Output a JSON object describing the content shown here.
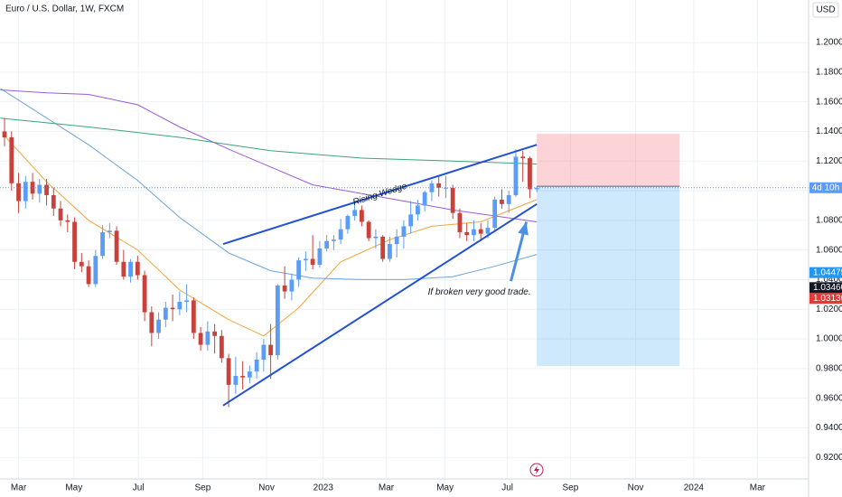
{
  "chart_data": {
    "type": "candlestick",
    "title": "Euro / U.S. Dollar, 1W, FXCM",
    "currency": "USD",
    "x": [
      -2,
      -1,
      0,
      1,
      2,
      3,
      4,
      5,
      6,
      7,
      8,
      9,
      10,
      11,
      12,
      13,
      14,
      15,
      16,
      17,
      18,
      19,
      20,
      21,
      22,
      23,
      24,
      25,
      26,
      27,
      28,
      29,
      30,
      31,
      32,
      33,
      34,
      35,
      36,
      37,
      38,
      39,
      40,
      41,
      42,
      43,
      44,
      45,
      46,
      47,
      48,
      49,
      50,
      51,
      52,
      53,
      54,
      55,
      56,
      57,
      58,
      59,
      60,
      61,
      62,
      63,
      64,
      65,
      66,
      67,
      68,
      69,
      70,
      71,
      72,
      73,
      74
    ],
    "ohlc": [
      [
        1.14,
        1.149,
        1.13,
        1.136
      ],
      [
        1.136,
        1.14,
        1.1,
        1.105
      ],
      [
        1.105,
        1.112,
        1.085,
        1.093
      ],
      [
        1.093,
        1.11,
        1.088,
        1.106
      ],
      [
        1.106,
        1.112,
        1.094,
        1.098
      ],
      [
        1.098,
        1.108,
        1.092,
        1.104
      ],
      [
        1.104,
        1.108,
        1.09,
        1.097
      ],
      [
        1.097,
        1.102,
        1.083,
        1.088
      ],
      [
        1.088,
        1.093,
        1.076,
        1.08
      ],
      [
        1.08,
        1.084,
        1.072,
        1.079
      ],
      [
        1.079,
        1.082,
        1.047,
        1.052
      ],
      [
        1.052,
        1.058,
        1.045,
        1.049
      ],
      [
        1.049,
        1.053,
        1.035,
        1.037
      ],
      [
        1.037,
        1.06,
        1.035,
        1.056
      ],
      [
        1.056,
        1.077,
        1.054,
        1.072
      ],
      [
        1.072,
        1.078,
        1.068,
        1.073
      ],
      [
        1.073,
        1.076,
        1.05,
        1.052
      ],
      [
        1.052,
        1.06,
        1.04,
        1.042
      ],
      [
        1.042,
        1.054,
        1.038,
        1.052
      ],
      [
        1.052,
        1.056,
        1.04,
        1.043
      ],
      [
        1.043,
        1.046,
        1.012,
        1.018
      ],
      [
        1.018,
        1.022,
        0.995,
        1.004
      ],
      [
        1.004,
        1.018,
        1.0,
        1.013
      ],
      [
        1.013,
        1.025,
        1.008,
        1.021
      ],
      [
        1.021,
        1.03,
        1.012,
        1.02
      ],
      [
        1.02,
        1.032,
        1.016,
        1.025
      ],
      [
        1.025,
        1.037,
        1.018,
        1.026
      ],
      [
        1.026,
        1.028,
        1.0,
        1.004
      ],
      [
        1.004,
        1.008,
        0.992,
        0.996
      ],
      [
        0.996,
        1.012,
        0.992,
        1.005
      ],
      [
        1.005,
        1.01,
        0.99,
        1.002
      ],
      [
        1.002,
        1.006,
        0.984,
        0.987
      ],
      [
        0.987,
        0.99,
        0.954,
        0.969
      ],
      [
        0.969,
        0.988,
        0.963,
        0.975
      ],
      [
        0.975,
        0.985,
        0.966,
        0.974
      ],
      [
        0.974,
        0.982,
        0.97,
        0.978
      ],
      [
        0.978,
        0.991,
        0.973,
        0.986
      ],
      [
        0.986,
        1.0,
        0.978,
        0.996
      ],
      [
        0.996,
        1.01,
        0.973,
        0.989
      ],
      [
        0.989,
        1.037,
        0.986,
        1.036
      ],
      [
        1.036,
        1.049,
        1.027,
        1.032
      ],
      [
        1.032,
        1.044,
        1.026,
        1.04
      ],
      [
        1.04,
        1.055,
        1.035,
        1.053
      ],
      [
        1.053,
        1.059,
        1.046,
        1.054
      ],
      [
        1.054,
        1.07,
        1.047,
        1.05
      ],
      [
        1.05,
        1.066,
        1.048,
        1.061
      ],
      [
        1.061,
        1.07,
        1.059,
        1.066
      ],
      [
        1.066,
        1.07,
        1.06,
        1.067
      ],
      [
        1.067,
        1.081,
        1.064,
        1.074
      ],
      [
        1.074,
        1.084,
        1.071,
        1.083
      ],
      [
        1.083,
        1.093,
        1.08,
        1.087
      ],
      [
        1.087,
        1.09,
        1.076,
        1.079
      ],
      [
        1.079,
        1.08,
        1.066,
        1.068
      ],
      [
        1.068,
        1.074,
        1.061,
        1.069
      ],
      [
        1.069,
        1.07,
        1.052,
        1.054
      ],
      [
        1.054,
        1.069,
        1.052,
        1.064
      ],
      [
        1.064,
        1.074,
        1.055,
        1.069
      ],
      [
        1.069,
        1.08,
        1.061,
        1.076
      ],
      [
        1.076,
        1.093,
        1.071,
        1.084
      ],
      [
        1.084,
        1.094,
        1.08,
        1.09
      ],
      [
        1.09,
        1.1,
        1.086,
        1.099
      ],
      [
        1.099,
        1.107,
        1.093,
        1.105
      ],
      [
        1.105,
        1.11,
        1.096,
        1.102
      ],
      [
        1.102,
        1.11,
        1.095,
        1.102
      ],
      [
        1.102,
        1.104,
        1.081,
        1.085
      ],
      [
        1.085,
        1.088,
        1.068,
        1.072
      ],
      [
        1.072,
        1.078,
        1.066,
        1.07
      ],
      [
        1.07,
        1.08,
        1.066,
        1.074
      ],
      [
        1.074,
        1.078,
        1.066,
        1.071
      ],
      [
        1.071,
        1.08,
        1.068,
        1.075
      ],
      [
        1.075,
        1.096,
        1.073,
        1.094
      ],
      [
        1.094,
        1.101,
        1.088,
        1.091
      ],
      [
        1.091,
        1.1,
        1.085,
        1.097
      ],
      [
        1.097,
        1.128,
        1.096,
        1.123
      ],
      [
        1.123,
        1.127,
        1.106,
        1.122
      ],
      [
        1.122,
        1.123,
        1.095,
        1.101
      ],
      [
        1.101,
        1.103,
        1.099,
        1.102
      ]
    ],
    "up_color": "#5b9cf6",
    "down_color": "#c7423c",
    "xlim": [
      -2.65,
      112.8
    ],
    "xticks": [
      {
        "value": 0,
        "label": "Mar"
      },
      {
        "value": 7.9,
        "label": "May"
      },
      {
        "value": 17.1,
        "label": "Jul"
      },
      {
        "value": 26.3,
        "label": "Sep"
      },
      {
        "value": 35.4,
        "label": "Nov"
      },
      {
        "value": 43.5,
        "label": "2023"
      },
      {
        "value": 52.5,
        "label": "Mar"
      },
      {
        "value": 60.9,
        "label": "May"
      },
      {
        "value": 69.8,
        "label": "Jul"
      },
      {
        "value": 78.8,
        "label": "Sep"
      },
      {
        "value": 88.1,
        "label": "Nov"
      },
      {
        "value": 96.4,
        "label": "2024"
      },
      {
        "value": 105.5,
        "label": "Mar"
      }
    ],
    "ylim": [
      0.9055,
      1.2287
    ],
    "yticks": [
      {
        "value": 0.92,
        "label": "0.92000"
      },
      {
        "value": 0.94,
        "label": "0.94000"
      },
      {
        "value": 0.96,
        "label": "0.96000"
      },
      {
        "value": 0.98,
        "label": "0.98000"
      },
      {
        "value": 1.0,
        "label": "1.00000"
      },
      {
        "value": 1.02,
        "label": "1.02000"
      },
      {
        "value": 1.04,
        "label": "1.04000"
      },
      {
        "value": 1.06,
        "label": "1.06000"
      },
      {
        "value": 1.08,
        "label": "1.08000"
      },
      {
        "value": 1.1,
        "label": "1.10000"
      },
      {
        "value": 1.12,
        "label": "1.12000"
      },
      {
        "value": 1.14,
        "label": "1.14000"
      },
      {
        "value": 1.16,
        "label": "1.16000"
      },
      {
        "value": 1.18,
        "label": "1.18000"
      },
      {
        "value": 1.2,
        "label": "1.20000"
      }
    ],
    "grid": true,
    "moving_averages": [
      {
        "color": "#f2a43a",
        "x": [
          -2,
          4,
          10,
          17,
          23,
          30,
          35,
          40,
          46,
          53,
          59,
          66,
          74
        ],
        "values": [
          1.137,
          1.106,
          1.08,
          1.06,
          1.033,
          1.013,
          1.002,
          1.021,
          1.052,
          1.067,
          1.076,
          1.079,
          1.094
        ]
      },
      {
        "color": "#6aa3dc",
        "x": [
          -2.6,
          10,
          17,
          23,
          30,
          36,
          42,
          49,
          55,
          62,
          68,
          74
        ],
        "values": [
          1.169,
          1.131,
          1.107,
          1.082,
          1.058,
          1.046,
          1.041,
          1.04,
          1.04,
          1.042,
          1.049,
          1.057
        ]
      },
      {
        "color": "#9a5ad6",
        "x": [
          -2.6,
          4,
          10,
          17,
          23,
          30,
          36,
          42,
          49,
          55,
          62,
          74
        ],
        "values": [
          1.168,
          1.166,
          1.165,
          1.158,
          1.143,
          1.128,
          1.116,
          1.104,
          1.098,
          1.093,
          1.087,
          1.079
        ]
      },
      {
        "color": "#3da37a",
        "x": [
          -2.6,
          10,
          23,
          36,
          49,
          62,
          74
        ],
        "values": [
          1.149,
          1.143,
          1.136,
          1.127,
          1.122,
          1.12,
          1.118
        ]
      }
    ],
    "trend_lines": [
      {
        "color": "#2251d6",
        "x": [
          29.2,
          74
        ],
        "values": [
          1.064,
          1.131
        ]
      },
      {
        "color": "#2251d6",
        "x": [
          29.2,
          74
        ],
        "values": [
          0.955,
          1.091
        ]
      }
    ],
    "arrow": {
      "color": "#4a8fe8",
      "x": [
        70.3,
        72.5
      ],
      "values": [
        1.039,
        1.079
      ]
    },
    "position": {
      "x": [
        74,
        94.4
      ],
      "stop": 1.1384,
      "entry": 1.103,
      "target": 0.9817
    },
    "annotations": [
      {
        "text": "Rising Wedge",
        "x": 51.6,
        "y": 1.0975,
        "along": 0
      },
      {
        "text": "If broken very good trade.",
        "x": 65.8,
        "y": 1.0316
      }
    ],
    "price_labels": [
      {
        "value": 1.04475,
        "label": "1.04475",
        "color": "#2196f3"
      },
      {
        "value": 1.0346,
        "label": "1.03460",
        "color": "#131722"
      },
      {
        "value": 1.0313,
        "label": "1.03130",
        "color": "#e53935"
      }
    ],
    "countdown": "4d 10h"
  }
}
